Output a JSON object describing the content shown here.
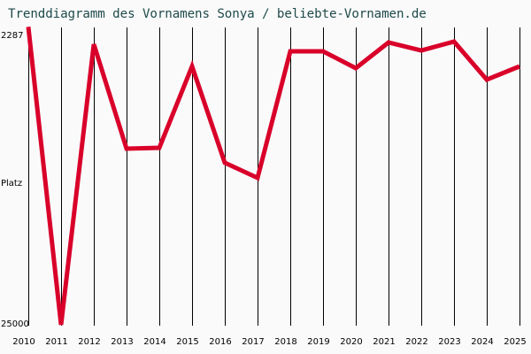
{
  "title": "Trenddiagramm des Vornamens Sonya / beliebte-Vornamen.de",
  "y_axis": {
    "top_label": "2287",
    "middle_label": "Platz",
    "bottom_label": "25000"
  },
  "colors": {
    "line": "#d9002a",
    "grid": "#000000",
    "title": "#1f4a4a",
    "background": "#fafafa"
  },
  "chart_data": {
    "type": "line",
    "title": "Trenddiagramm des Vornamens Sonya / beliebte-Vornamen.de",
    "xlabel": "",
    "ylabel": "Platz",
    "ylim": [
      25000,
      2287
    ],
    "y_inverted": true,
    "grid": "vertical lines per year",
    "legend": "none",
    "categories": [
      "2010",
      "2011",
      "2012",
      "2013",
      "2014",
      "2015",
      "2016",
      "2017",
      "2018",
      "2019",
      "2020",
      "2021",
      "2022",
      "2023",
      "2024",
      "2025"
    ],
    "series": [
      {
        "name": "Sonya",
        "values": [
          2100,
          25000,
          3440,
          11470,
          11400,
          5140,
          12550,
          13710,
          3990,
          3990,
          5280,
          3310,
          3920,
          3240,
          6160,
          5140
        ]
      }
    ]
  }
}
